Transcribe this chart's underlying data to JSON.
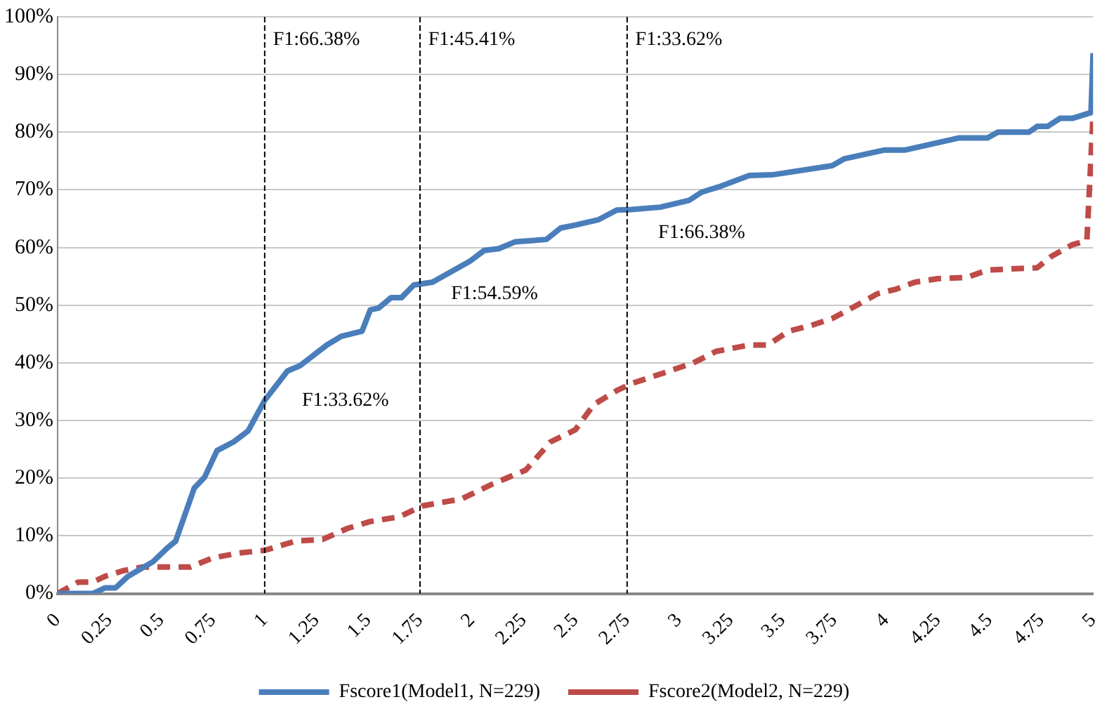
{
  "chart_data": {
    "type": "line",
    "xlim": [
      0,
      5
    ],
    "xticks": [
      0,
      0.25,
      0.5,
      0.75,
      1,
      1.25,
      1.5,
      1.75,
      2,
      2.25,
      2.5,
      2.75,
      3,
      3.25,
      3.5,
      3.75,
      4,
      4.25,
      4.5,
      4.75,
      5
    ],
    "ylim": [
      0,
      100
    ],
    "yticks": [
      {
        "value": 0,
        "label": "0%"
      },
      {
        "value": 10,
        "label": "10%"
      },
      {
        "value": 20,
        "label": "20%"
      },
      {
        "value": 30,
        "label": "30%"
      },
      {
        "value": 40,
        "label": "40%"
      },
      {
        "value": 50,
        "label": "50%"
      },
      {
        "value": 60,
        "label": "60%"
      },
      {
        "value": 70,
        "label": "70%"
      },
      {
        "value": 80,
        "label": "80%"
      },
      {
        "value": 90,
        "label": "90%"
      },
      {
        "value": 100,
        "label": "100%"
      }
    ],
    "grid": "y",
    "legend": "bottom",
    "marker": "none",
    "series": [
      {
        "name": "Fscore1(Model1, N=229)",
        "color": "#4a7ebb",
        "line_style": "solid",
        "x": [
          0,
          0.17,
          0.23,
          0.28,
          0.34,
          0.46,
          0.53,
          0.57,
          0.66,
          0.71,
          0.77,
          0.85,
          0.92,
          1.0,
          1.11,
          1.17,
          1.3,
          1.37,
          1.47,
          1.51,
          1.55,
          1.61,
          1.66,
          1.72,
          1.81,
          1.99,
          2.06,
          2.13,
          2.21,
          2.36,
          2.43,
          2.5,
          2.61,
          2.7,
          2.77,
          2.91,
          3.05,
          3.11,
          3.2,
          3.34,
          3.45,
          3.74,
          3.8,
          3.99,
          4.09,
          4.35,
          4.49,
          4.54,
          4.69,
          4.73,
          4.78,
          4.84,
          4.9,
          4.99,
          5.0
        ],
        "values": [
          0,
          0,
          1,
          1,
          3,
          5.5,
          7.9,
          9.1,
          18.3,
          20.2,
          24.8,
          26.3,
          28.2,
          33.5,
          38.6,
          39.5,
          43.1,
          44.6,
          45.5,
          49.2,
          49.5,
          51.3,
          51.3,
          53.5,
          54,
          57.6,
          59.5,
          59.8,
          61,
          61.4,
          63.4,
          63.9,
          64.8,
          66.5,
          66.6,
          67,
          68.2,
          69.6,
          70.6,
          72.5,
          72.6,
          74.2,
          75.4,
          76.9,
          76.9,
          79,
          79,
          80,
          80,
          81,
          81,
          82.4,
          82.4,
          83.4,
          93.7
        ]
      },
      {
        "name": "Fscore2(Model2, N=229)",
        "color": "#be4b48",
        "line_style": "dashed",
        "x": [
          0,
          0.1,
          0.17,
          0.23,
          0.32,
          0.41,
          0.64,
          0.75,
          0.87,
          1.0,
          1.15,
          1.28,
          1.4,
          1.51,
          1.65,
          1.76,
          1.95,
          2.1,
          2.26,
          2.38,
          2.5,
          2.59,
          2.7,
          2.77,
          2.93,
          3.07,
          3.18,
          3.34,
          3.43,
          3.53,
          3.64,
          3.74,
          3.84,
          3.96,
          4.05,
          4.14,
          4.25,
          4.39,
          4.49,
          4.73,
          4.8,
          4.9,
          4.97,
          5.0
        ],
        "values": [
          0,
          2,
          2,
          3,
          4,
          4.6,
          4.6,
          6.2,
          7,
          7.5,
          9.1,
          9.4,
          11.3,
          12.5,
          13.3,
          15.2,
          16.4,
          19,
          21.4,
          26.3,
          28.4,
          32.8,
          35.2,
          36.4,
          38.3,
          40,
          42,
          43.1,
          43.1,
          45.5,
          46.5,
          47.7,
          49.6,
          52,
          52.8,
          54,
          54.6,
          54.8,
          56.1,
          56.5,
          58.5,
          60.5,
          61.2,
          83
        ]
      }
    ],
    "ref_lines": [
      {
        "axis": "x",
        "value": 1,
        "color": "#000000",
        "line_style": "dashed"
      },
      {
        "axis": "x",
        "value": 1.75,
        "color": "#000000",
        "line_style": "dashed"
      },
      {
        "axis": "x",
        "value": 2.75,
        "color": "#000000",
        "line_style": "dashed"
      }
    ],
    "annotations": [
      "F1:66.38%",
      "F1:45.41%",
      "F1:33.62%",
      "F1:33.62%",
      "F1:54.59%",
      "F1:66.38%"
    ]
  }
}
